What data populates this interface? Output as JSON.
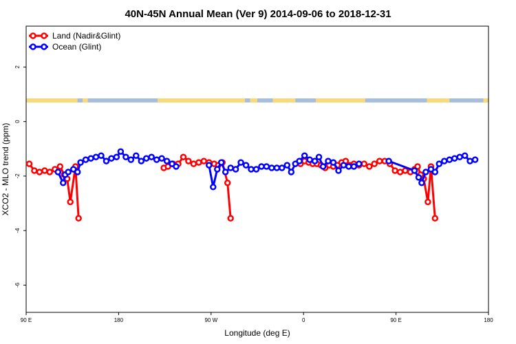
{
  "chart_data": {
    "type": "line",
    "title": "40N-45N Annual Mean (Ver 9)   2014-09-06 to 2018-12-31",
    "xlabel": "Longitude (deg E)",
    "ylabel": "XCO2 - MLO trend (ppm)",
    "xlim": [
      90,
      540
    ],
    "ylim": [
      -7,
      3.5
    ],
    "x_ticks": [
      {
        "value": 90,
        "label": "90 E"
      },
      {
        "value": 180,
        "label": "180"
      },
      {
        "value": 270,
        "label": "90 W"
      },
      {
        "value": 360,
        "label": "0"
      },
      {
        "value": 450,
        "label": "90 E"
      },
      {
        "value": 540,
        "label": "180"
      }
    ],
    "y_ticks": [
      {
        "value": 2,
        "label": "2"
      },
      {
        "value": 0,
        "label": "0"
      },
      {
        "value": -2,
        "label": "-2"
      },
      {
        "value": -4,
        "label": "-4"
      },
      {
        "value": -6,
        "label": "-6"
      }
    ],
    "legend_position": "top-left",
    "grid": false,
    "surface_strip": {
      "y_range": [
        0.7,
        0.85
      ],
      "land_color": "#f9d978",
      "ocean_color": "#a7bddd",
      "land_ranges": [
        [
          90,
          140
        ],
        [
          145,
          150
        ],
        [
          218,
          303
        ],
        [
          308,
          315
        ],
        [
          330,
          352
        ],
        [
          372,
          420
        ],
        [
          480,
          502
        ],
        [
          535,
          540
        ]
      ]
    },
    "series": [
      {
        "name": "Land (Nadir&Glint)",
        "color": "#ff0000",
        "segments": [
          [
            [
              93,
              -1.55
            ],
            [
              98,
              -1.8
            ],
            [
              103,
              -1.85
            ],
            [
              108,
              -1.8
            ],
            [
              113,
              -1.85
            ],
            [
              118,
              -1.75
            ],
            [
              123,
              -1.65
            ],
            [
              127,
              -1.95
            ],
            [
              130,
              -2.1
            ],
            [
              133,
              -2.95
            ],
            [
              138,
              -1.65
            ],
            [
              141,
              -3.55
            ]
          ],
          [
            [
              224,
              -1.7
            ],
            [
              228,
              -1.65
            ],
            [
              233,
              -1.55
            ],
            [
              238,
              -1.55
            ],
            [
              243,
              -1.3
            ],
            [
              248,
              -1.45
            ],
            [
              253,
              -1.55
            ],
            [
              258,
              -1.5
            ],
            [
              263,
              -1.45
            ],
            [
              268,
              -1.5
            ],
            [
              273,
              -1.55
            ],
            [
              277,
              -1.6
            ],
            [
              281,
              -1.5
            ],
            [
              286,
              -2.25
            ],
            [
              289,
              -3.55
            ]
          ],
          [
            [
              357,
              -1.55
            ],
            [
              361,
              -1.45
            ],
            [
              365,
              -1.5
            ],
            [
              369,
              -1.55
            ],
            [
              373,
              -1.55
            ],
            [
              377,
              -1.6
            ],
            [
              381,
              -1.7
            ],
            [
              385,
              -1.6
            ],
            [
              389,
              -1.65
            ],
            [
              393,
              -1.6
            ],
            [
              397,
              -1.5
            ],
            [
              401,
              -1.45
            ],
            [
              405,
              -1.6
            ],
            [
              409,
              -1.55
            ],
            [
              414,
              -1.6
            ],
            [
              419,
              -1.55
            ],
            [
              424,
              -1.65
            ],
            [
              429,
              -1.55
            ],
            [
              434,
              -1.45
            ],
            [
              439,
              -1.45
            ],
            [
              444,
              -1.55
            ],
            [
              449,
              -1.8
            ],
            [
              454,
              -1.85
            ],
            [
              459,
              -1.8
            ],
            [
              464,
              -1.85
            ],
            [
              468,
              -1.75
            ],
            [
              471,
              -1.65
            ],
            [
              474,
              -1.95
            ],
            [
              477,
              -2.1
            ],
            [
              481,
              -2.95
            ],
            [
              484,
              -1.65
            ],
            [
              488,
              -3.55
            ]
          ]
        ]
      },
      {
        "name": "Ocean (Glint)",
        "color": "#0000ff",
        "segments": [
          [
            [
              121,
              -1.85
            ],
            [
              126,
              -2.25
            ],
            [
              128,
              -1.95
            ],
            [
              131,
              -1.85
            ],
            [
              136,
              -1.75
            ],
            [
              140,
              -1.85
            ],
            [
              143,
              -1.5
            ],
            [
              148,
              -1.4
            ],
            [
              153,
              -1.35
            ],
            [
              158,
              -1.3
            ],
            [
              163,
              -1.25
            ],
            [
              168,
              -1.45
            ],
            [
              173,
              -1.35
            ],
            [
              178,
              -1.3
            ],
            [
              182,
              -1.1
            ],
            [
              187,
              -1.3
            ],
            [
              192,
              -1.4
            ],
            [
              197,
              -1.25
            ],
            [
              202,
              -1.45
            ],
            [
              207,
              -1.35
            ],
            [
              212,
              -1.3
            ],
            [
              217,
              -1.4
            ],
            [
              222,
              -1.35
            ],
            [
              227,
              -1.45
            ],
            [
              232,
              -1.55
            ],
            [
              236,
              -1.65
            ]
          ],
          [
            [
              268,
              -1.6
            ],
            [
              272,
              -2.4
            ],
            [
              276,
              -1.75
            ],
            [
              280,
              -1.5
            ],
            [
              284,
              -1.85
            ],
            [
              289,
              -1.7
            ],
            [
              294,
              -1.75
            ],
            [
              299,
              -1.5
            ],
            [
              304,
              -1.6
            ],
            [
              309,
              -1.75
            ],
            [
              314,
              -1.75
            ],
            [
              319,
              -1.65
            ],
            [
              324,
              -1.65
            ],
            [
              329,
              -1.7
            ],
            [
              334,
              -1.7
            ],
            [
              339,
              -1.7
            ],
            [
              344,
              -1.6
            ],
            [
              348,
              -1.85
            ],
            [
              352,
              -1.55
            ],
            [
              356,
              -1.45
            ],
            [
              361,
              -1.25
            ],
            [
              366,
              -1.4
            ],
            [
              371,
              -1.45
            ],
            [
              375,
              -1.3
            ],
            [
              379,
              -1.65
            ],
            [
              384,
              -1.45
            ],
            [
              389,
              -1.5
            ],
            [
              394,
              -1.8
            ],
            [
              399,
              -1.6
            ],
            [
              404,
              -1.65
            ],
            [
              409,
              -1.65
            ],
            [
              414,
              -1.55
            ]
          ],
          [
            [
              443,
              -1.45
            ],
            [
              468,
              -1.8
            ],
            [
              472,
              -2.05
            ],
            [
              475,
              -2.25
            ],
            [
              479,
              -1.85
            ],
            [
              484,
              -1.75
            ],
            [
              488,
              -1.85
            ],
            [
              492,
              -1.55
            ],
            [
              497,
              -1.45
            ],
            [
              502,
              -1.4
            ],
            [
              507,
              -1.35
            ],
            [
              512,
              -1.3
            ],
            [
              517,
              -1.25
            ],
            [
              522,
              -1.45
            ],
            [
              527,
              -1.4
            ]
          ]
        ]
      }
    ]
  }
}
